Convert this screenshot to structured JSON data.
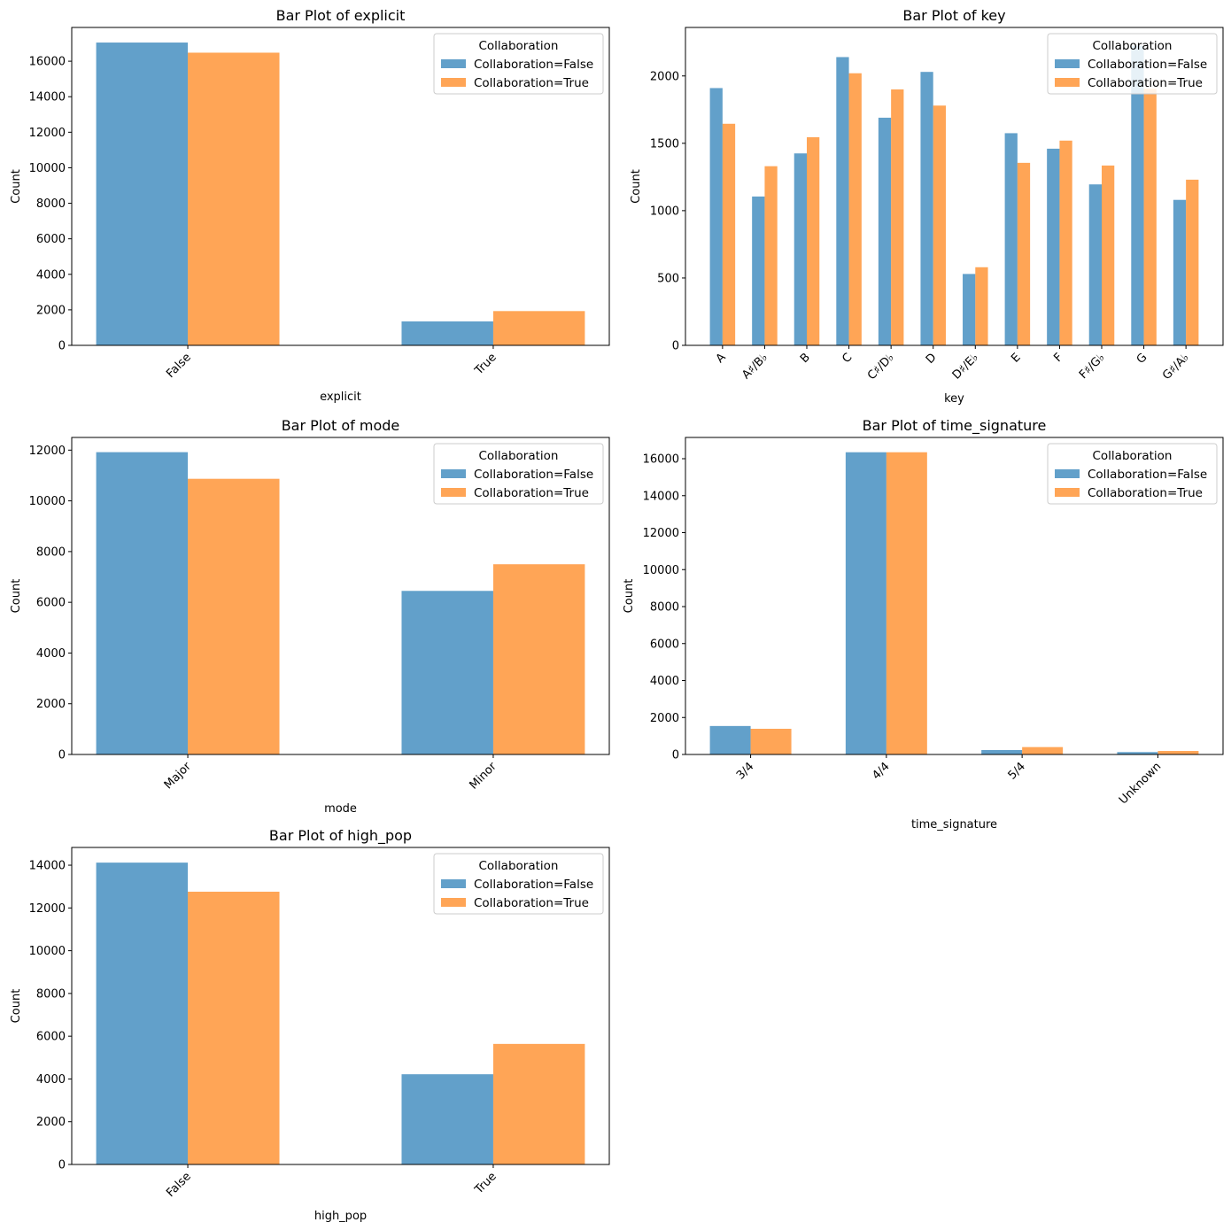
{
  "colors": {
    "series_false": "#1f77b4",
    "series_true": "#ff7f0e",
    "bar_opacity": 0.7
  },
  "legend": {
    "title": "Collaboration",
    "labels": [
      "Collaboration=False",
      "Collaboration=True"
    ],
    "placement": "upper-right"
  },
  "chart_data": [
    {
      "type": "bar",
      "title": "Bar Plot of explicit",
      "xlabel": "explicit",
      "ylabel": "Count",
      "categories": [
        "False",
        "True"
      ],
      "series": [
        {
          "name": "Collaboration=False",
          "values": [
            17050,
            1350
          ]
        },
        {
          "name": "Collaboration=True",
          "values": [
            16480,
            1930
          ]
        }
      ],
      "ylim": [
        0,
        17900
      ],
      "yticks": [
        0,
        2000,
        4000,
        6000,
        8000,
        10000,
        12000,
        14000,
        16000
      ],
      "grid": false
    },
    {
      "type": "bar",
      "title": "Bar Plot of key",
      "xlabel": "key",
      "ylabel": "Count",
      "categories": [
        "A",
        "A♯/B♭",
        "B",
        "C",
        "C♯/D♭",
        "D",
        "D♯/E♭",
        "E",
        "F",
        "F♯/G♭",
        "G",
        "G♯/A♭"
      ],
      "series": [
        {
          "name": "Collaboration=False",
          "values": [
            1910,
            1105,
            1425,
            2140,
            1690,
            2030,
            530,
            1575,
            1460,
            1195,
            2225,
            1080
          ]
        },
        {
          "name": "Collaboration=True",
          "values": [
            1645,
            1330,
            1545,
            2020,
            1900,
            1780,
            580,
            1355,
            1520,
            1335,
            1905,
            1230
          ]
        }
      ],
      "ylim": [
        0,
        2360
      ],
      "yticks": [
        0,
        500,
        1000,
        1500,
        2000
      ],
      "grid": false
    },
    {
      "type": "bar",
      "title": "Bar Plot of mode",
      "xlabel": "mode",
      "ylabel": "Count",
      "categories": [
        "Major",
        "Minor"
      ],
      "series": [
        {
          "name": "Collaboration=False",
          "values": [
            11920,
            6450
          ]
        },
        {
          "name": "Collaboration=True",
          "values": [
            10870,
            7500
          ]
        }
      ],
      "ylim": [
        0,
        12500
      ],
      "yticks": [
        0,
        2000,
        4000,
        6000,
        8000,
        10000,
        12000
      ],
      "grid": false
    },
    {
      "type": "bar",
      "title": "Bar Plot of time_signature",
      "xlabel": "time_signature",
      "ylabel": "Count",
      "categories": [
        "3/4",
        "4/4",
        "5/4",
        "Unknown"
      ],
      "series": [
        {
          "name": "Collaboration=False",
          "values": [
            1540,
            16350,
            240,
            130
          ]
        },
        {
          "name": "Collaboration=True",
          "values": [
            1390,
            16350,
            400,
            190
          ]
        }
      ],
      "ylim": [
        0,
        17150
      ],
      "yticks": [
        0,
        2000,
        4000,
        6000,
        8000,
        10000,
        12000,
        14000,
        16000
      ],
      "grid": false
    },
    {
      "type": "bar",
      "title": "Bar Plot of high_pop",
      "xlabel": "high_pop",
      "ylabel": "Count",
      "categories": [
        "False",
        "True"
      ],
      "series": [
        {
          "name": "Collaboration=False",
          "values": [
            14120,
            4220
          ]
        },
        {
          "name": "Collaboration=True",
          "values": [
            12760,
            5640
          ]
        }
      ],
      "ylim": [
        0,
        14830
      ],
      "yticks": [
        0,
        2000,
        4000,
        6000,
        8000,
        10000,
        12000,
        14000
      ],
      "grid": false
    }
  ]
}
